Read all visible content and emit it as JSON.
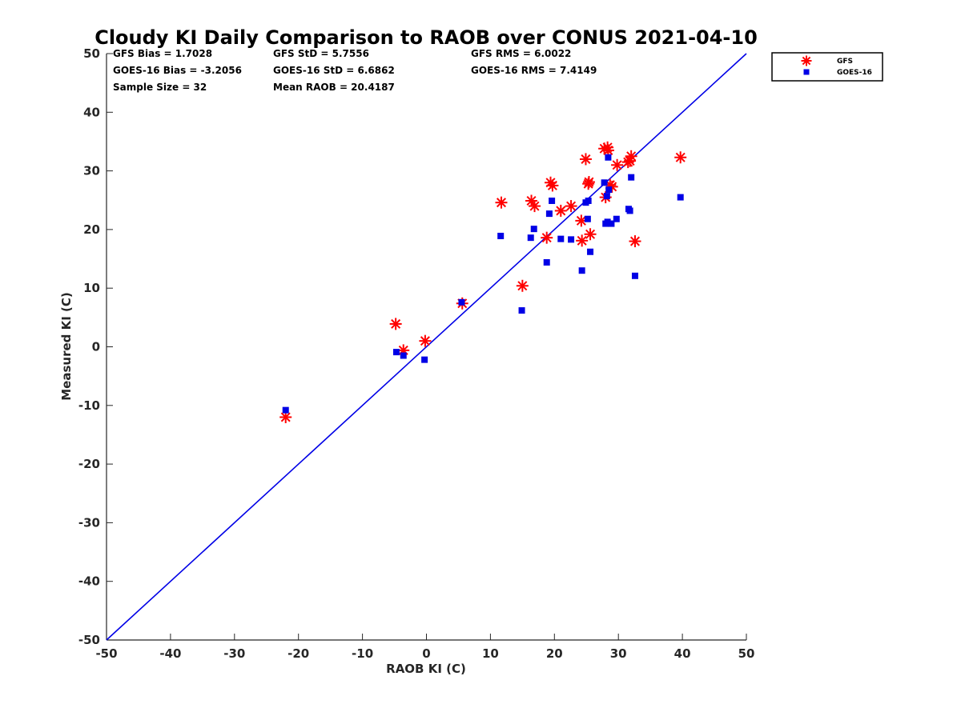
{
  "chart_data": {
    "type": "scatter",
    "title": "Cloudy KI Daily Comparison to RAOB over CONUS 2021-04-10",
    "xlabel": "RAOB KI (C)",
    "ylabel": "Measured KI (C)",
    "xlim": [
      -50,
      50
    ],
    "ylim": [
      -50,
      50
    ],
    "xticks": [
      "-50",
      "-40",
      "-30",
      "-20",
      "-10",
      "0",
      "10",
      "20",
      "30",
      "40",
      "50"
    ],
    "yticks": [
      "-50",
      "-40",
      "-30",
      "-20",
      "-10",
      "0",
      "10",
      "20",
      "30",
      "40",
      "50"
    ],
    "grid": false,
    "legend_position": "outside-top-right",
    "reference_line": {
      "x": [
        -50,
        50
      ],
      "y": [
        -50,
        50
      ],
      "color": "#0000e6"
    },
    "stats": [
      [
        "GFS Bias = 1.7028",
        "GFS StD = 5.7556",
        "GFS RMS = 6.0022"
      ],
      [
        "GOES-16 Bias = -3.2056",
        "GOES-16 StD = 6.6862",
        "GOES-16 RMS = 7.4149"
      ],
      [
        "Sample Size = 32",
        "Mean RAOB = 20.4187"
      ]
    ],
    "series": [
      {
        "name": "GFS",
        "marker": "asterisk",
        "color": "#ff0000",
        "points": [
          [
            -22.0,
            -12.0
          ],
          [
            -4.8,
            3.9
          ],
          [
            -3.6,
            -0.6
          ],
          [
            -0.2,
            1.0
          ],
          [
            5.6,
            7.4
          ],
          [
            11.7,
            24.6
          ],
          [
            15.0,
            10.4
          ],
          [
            16.4,
            24.9
          ],
          [
            16.9,
            24.0
          ],
          [
            18.8,
            18.6
          ],
          [
            19.4,
            28.0
          ],
          [
            19.7,
            27.5
          ],
          [
            21.0,
            23.2
          ],
          [
            22.6,
            24.0
          ],
          [
            24.2,
            21.5
          ],
          [
            24.3,
            18.1
          ],
          [
            24.9,
            32.0
          ],
          [
            25.3,
            27.8
          ],
          [
            25.4,
            28.1
          ],
          [
            25.6,
            19.2
          ],
          [
            27.8,
            33.8
          ],
          [
            28.0,
            25.5
          ],
          [
            28.3,
            34.0
          ],
          [
            28.4,
            33.5
          ],
          [
            28.7,
            27.6
          ],
          [
            29.0,
            27.3
          ],
          [
            29.8,
            31.0
          ],
          [
            31.5,
            31.5
          ],
          [
            31.8,
            31.7
          ],
          [
            32.0,
            32.5
          ],
          [
            32.6,
            18.0
          ],
          [
            39.7,
            32.3
          ]
        ]
      },
      {
        "name": "GOES-16",
        "marker": "square",
        "color": "#0000e6",
        "points": [
          [
            -22.0,
            -10.8
          ],
          [
            -4.7,
            -0.9
          ],
          [
            -3.6,
            -1.5
          ],
          [
            -0.3,
            -2.2
          ],
          [
            5.5,
            7.6
          ],
          [
            11.6,
            18.9
          ],
          [
            14.9,
            6.2
          ],
          [
            16.3,
            18.6
          ],
          [
            16.8,
            20.1
          ],
          [
            18.8,
            14.4
          ],
          [
            19.2,
            22.7
          ],
          [
            19.6,
            24.9
          ],
          [
            21.0,
            18.4
          ],
          [
            22.6,
            18.3
          ],
          [
            24.3,
            13.0
          ],
          [
            24.9,
            24.6
          ],
          [
            25.2,
            21.8
          ],
          [
            25.3,
            24.9
          ],
          [
            25.6,
            16.2
          ],
          [
            27.8,
            28.0
          ],
          [
            28.0,
            21.0
          ],
          [
            28.2,
            25.7
          ],
          [
            28.3,
            21.3
          ],
          [
            28.4,
            32.3
          ],
          [
            28.5,
            26.8
          ],
          [
            28.9,
            21.0
          ],
          [
            29.7,
            21.8
          ],
          [
            31.6,
            23.5
          ],
          [
            31.8,
            23.2
          ],
          [
            32.0,
            28.9
          ],
          [
            32.6,
            12.1
          ],
          [
            39.7,
            25.5
          ]
        ]
      }
    ]
  }
}
